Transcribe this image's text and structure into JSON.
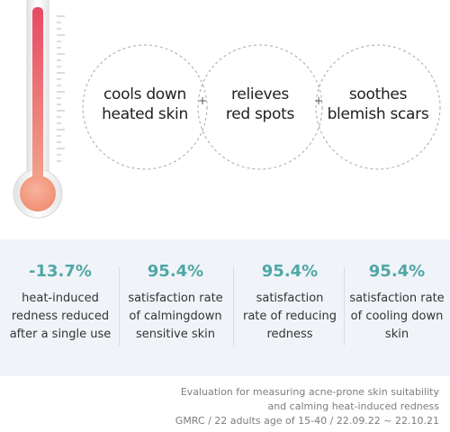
{
  "benefits": [
    {
      "line1": "cools down",
      "line2": "heated skin"
    },
    {
      "line1": "relieves",
      "line2": "red spots"
    },
    {
      "line1": "soothes",
      "line2": "blemish scars"
    }
  ],
  "plus_symbol": "+",
  "stats": [
    {
      "value": "-13.7%",
      "line1": "heat-induced",
      "line2": "redness reduced",
      "line3": "after a single use"
    },
    {
      "value": "95.4%",
      "line1": "satisfaction rate",
      "line2": "of calmingdown",
      "line3": "sensitive skin"
    },
    {
      "value": "95.4%",
      "line1": "satisfaction",
      "line2": "rate of reducing",
      "line3": "redness"
    },
    {
      "value": "95.4%",
      "line1": "satisfaction rate",
      "line2": "of cooling down",
      "line3": "skin"
    }
  ],
  "footnote": {
    "line1": "Evaluation for measuring acne-prone skin suitability",
    "line2": "and calming heat-induced redness",
    "line3": "GMRC / 22 adults age of 15-40 / 22.09.22 ~ 22.10.21"
  },
  "colors": {
    "accent_teal": "#4fa7a6",
    "thermometer_red": "#e85a6a",
    "thermometer_bulb": "#f59b85",
    "band_bg": "#f0f4f8"
  },
  "icons": [
    "thermometer-icon"
  ]
}
